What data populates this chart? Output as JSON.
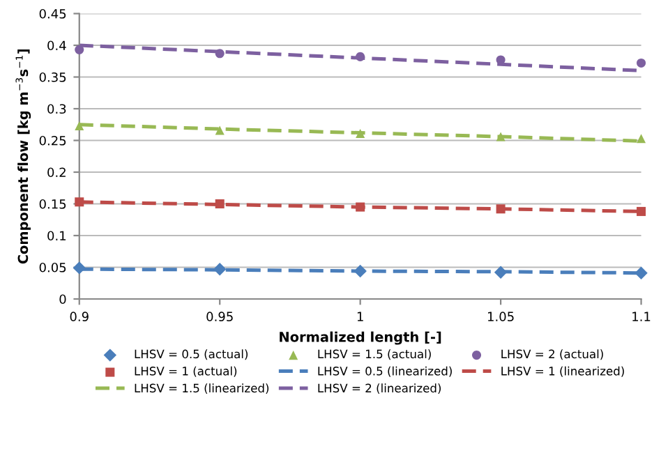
{
  "chart_data": {
    "type": "scatter",
    "xlabel": "Normalized length [-]",
    "ylabel": "Component flow [kg m$^{−3}$s$^{−1}$]",
    "x": [
      0.9,
      0.95,
      1,
      1.05,
      1.1
    ],
    "xlim": [
      0.9,
      1.1
    ],
    "xticks": [
      0.9,
      0.95,
      1,
      1.05,
      1.1
    ],
    "ylim": [
      0,
      0.45
    ],
    "yticks": [
      0,
      0.05,
      0.1,
      0.15,
      0.2,
      0.25,
      0.3,
      0.35,
      0.4,
      0.45
    ],
    "grid": "y",
    "legend": "bottom",
    "series": [
      {
        "name": "LHSV = 0.5 (actual)",
        "marker": "diamond",
        "color": "#4a7ebb",
        "values": [
          0.049,
          0.047,
          0.044,
          0.042,
          0.041
        ]
      },
      {
        "name": "LHSV = 1.5 (actual)",
        "marker": "triangle",
        "color": "#98b954",
        "values": [
          0.273,
          0.266,
          0.261,
          0.256,
          0.253
        ]
      },
      {
        "name": "LHSV = 2 (actual)",
        "marker": "circle",
        "color": "#7d60a0",
        "values": [
          0.393,
          0.387,
          0.382,
          0.377,
          0.372
        ]
      },
      {
        "name": "LHSV = 1 (actual)",
        "marker": "square",
        "color": "#be4b48",
        "values": [
          0.153,
          0.15,
          0.145,
          0.142,
          0.138
        ]
      },
      {
        "name": "LHSV = 0.5 (linearized)",
        "type": "line",
        "line_style": "dashed",
        "color": "#4a7ebb",
        "values": [
          0.047,
          0.046,
          0.044,
          0.043,
          0.041
        ]
      },
      {
        "name": "LHSV = 1 (linearized)",
        "type": "line",
        "line_style": "dashed",
        "color": "#be4b48",
        "values": [
          0.153,
          0.149,
          0.145,
          0.142,
          0.138
        ]
      },
      {
        "name": "LHSV = 1.5 (linearized)",
        "type": "line",
        "line_style": "dashed",
        "color": "#98b954",
        "values": [
          0.275,
          0.268,
          0.262,
          0.256,
          0.249
        ]
      },
      {
        "name": "LHSV = 2 (linearized)",
        "type": "line",
        "line_style": "dashed",
        "color": "#7d60a0",
        "values": [
          0.4,
          0.39,
          0.38,
          0.37,
          0.36
        ]
      }
    ]
  }
}
